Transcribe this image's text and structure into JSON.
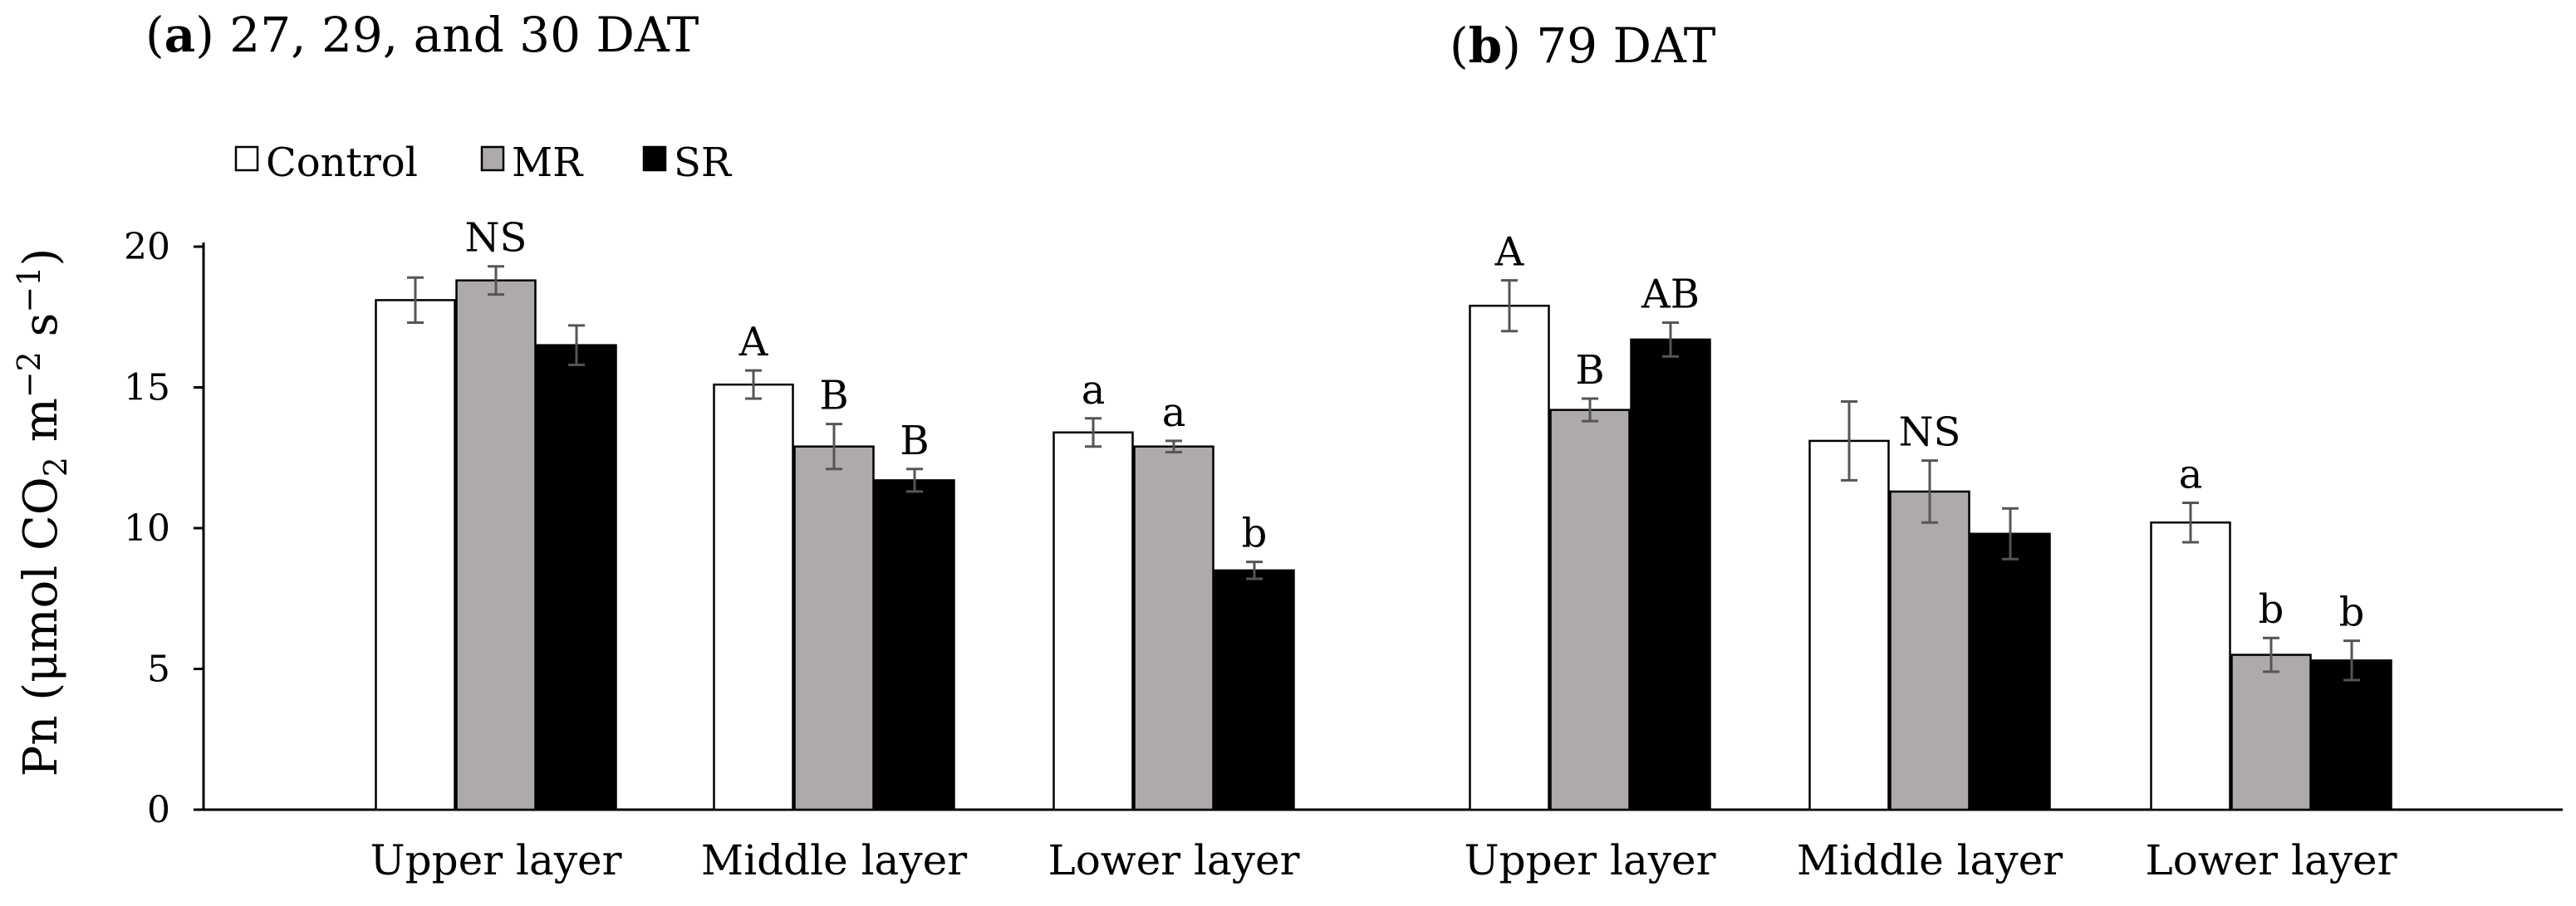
{
  "chart_data": {
    "type": "bar",
    "title": "",
    "ylabel": {
      "prefix": "Pn (μmol CO",
      "sub": "2",
      "mid": " m",
      "sup1": "−2",
      "mid2": " s",
      "sup2": "−1",
      "suffix": ")"
    },
    "ylim": [
      0,
      20
    ],
    "yticks": [
      0,
      5,
      10,
      15,
      20
    ],
    "legend": {
      "placement": "top-left",
      "entries": [
        {
          "name": "Control",
          "color": "#ffffff"
        },
        {
          "name": "MR",
          "color": "#aeaaaa"
        },
        {
          "name": "SR",
          "color": "#000000"
        }
      ]
    },
    "panels": [
      {
        "label": "a",
        "title_rest": " 27, 29, and 30 DAT",
        "groups": [
          {
            "category": "Upper layer",
            "values": [
              18.1,
              18.8,
              16.5
            ],
            "errors": [
              0.8,
              0.5,
              0.7
            ],
            "letters": [
              "",
              "NS",
              ""
            ]
          },
          {
            "category": "Middle layer",
            "values": [
              15.1,
              12.9,
              11.7
            ],
            "errors": [
              0.5,
              0.8,
              0.4
            ],
            "letters": [
              "A",
              "B",
              "B"
            ]
          },
          {
            "category": "Lower layer",
            "values": [
              13.4,
              12.9,
              8.5
            ],
            "errors": [
              0.5,
              0.2,
              0.3
            ],
            "letters": [
              "a",
              "a",
              "b"
            ]
          }
        ]
      },
      {
        "label": "b",
        "title_rest": " 79 DAT",
        "groups": [
          {
            "category": "Upper layer",
            "values": [
              17.9,
              14.2,
              16.7
            ],
            "errors": [
              0.9,
              0.4,
              0.6
            ],
            "letters": [
              "A",
              "B",
              "AB"
            ]
          },
          {
            "category": "Middle layer",
            "values": [
              13.1,
              11.3,
              9.8
            ],
            "errors": [
              1.4,
              1.1,
              0.9
            ],
            "letters": [
              "",
              "NS",
              ""
            ]
          },
          {
            "category": "Lower layer",
            "values": [
              10.2,
              5.5,
              5.3
            ],
            "errors": [
              0.7,
              0.6,
              0.7
            ],
            "letters": [
              "a",
              "b",
              "b"
            ]
          }
        ]
      }
    ]
  }
}
